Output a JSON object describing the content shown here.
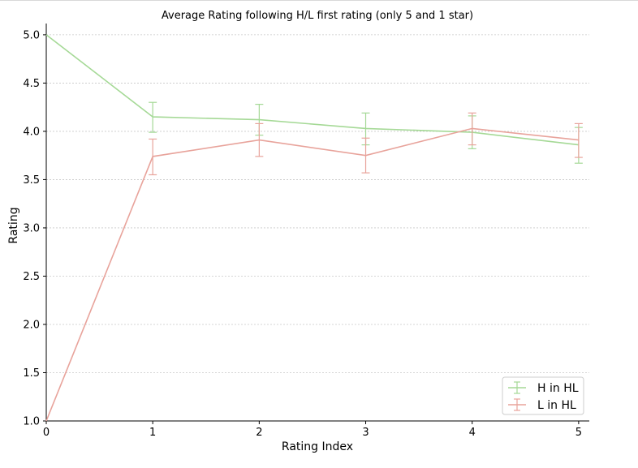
{
  "chart_data": {
    "type": "line",
    "title": "Average Rating following H/L first rating (only 5 and 1 star)",
    "xlabel": "Rating Index",
    "ylabel": "Rating",
    "xlim": [
      0,
      5.1
    ],
    "ylim": [
      1.0,
      5.1
    ],
    "x": [
      0,
      1,
      2,
      3,
      4,
      5
    ],
    "xticks": [
      "0",
      "1",
      "2",
      "3",
      "4",
      "5"
    ],
    "yticks": [
      1.0,
      1.5,
      2.0,
      2.5,
      3.0,
      3.5,
      4.0,
      4.5,
      5.0
    ],
    "ytick_labels": [
      "1.0",
      "1.5",
      "2.0",
      "2.5",
      "3.0",
      "3.5",
      "4.0",
      "4.5",
      "5.0"
    ],
    "grid": "horizontal dashed",
    "legend_position": "bottom-right",
    "series": [
      {
        "name": "H in HL",
        "color": "#a5d996",
        "values": [
          5.0,
          4.15,
          4.12,
          4.03,
          3.99,
          3.86
        ],
        "error_low": [
          null,
          3.99,
          3.96,
          3.86,
          3.82,
          3.67
        ],
        "error_high": [
          null,
          4.3,
          4.28,
          4.19,
          4.16,
          4.04
        ]
      },
      {
        "name": "L in HL",
        "color": "#e8a39b",
        "values": [
          1.0,
          3.74,
          3.91,
          3.75,
          4.03,
          3.91
        ],
        "error_low": [
          null,
          3.55,
          3.74,
          3.57,
          3.86,
          3.73
        ],
        "error_high": [
          null,
          3.92,
          4.08,
          3.93,
          4.19,
          4.08
        ]
      }
    ]
  }
}
